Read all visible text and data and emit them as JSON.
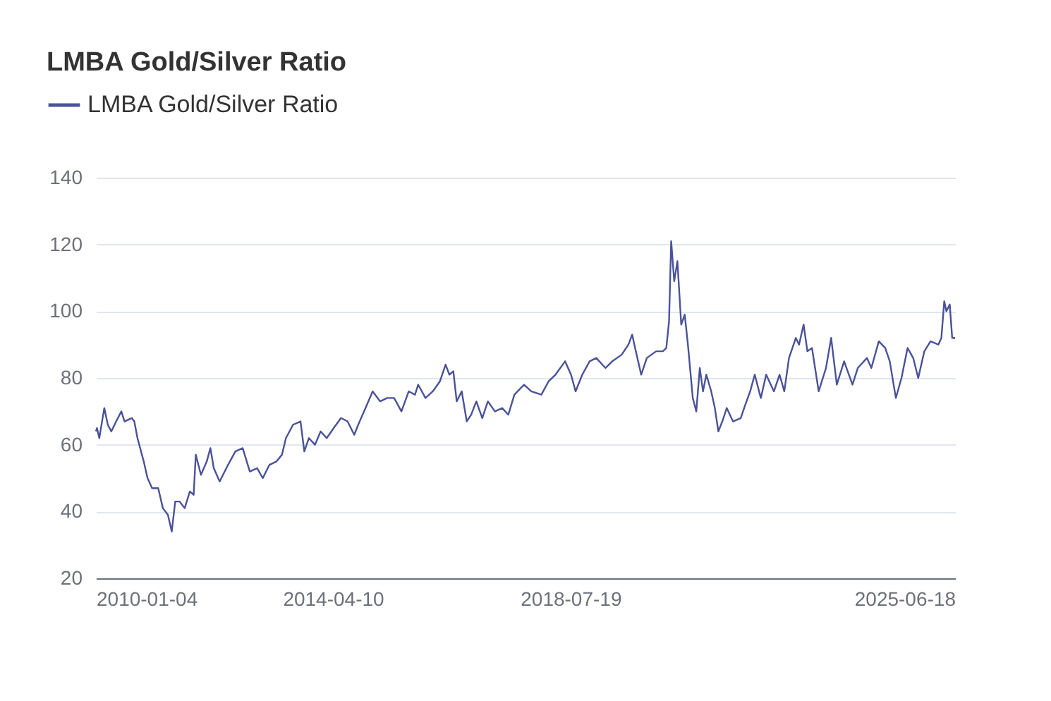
{
  "chart_data": {
    "type": "line",
    "title": "LMBA Gold/Silver Ratio",
    "xlim": [
      "2010-01-04",
      "2025-06-18"
    ],
    "xticks": [
      "2010-01-04",
      "2014-04-10",
      "2018-07-19",
      "2025-06-18"
    ],
    "ylim": [
      20,
      140
    ],
    "yticks": [
      20,
      40,
      60,
      80,
      100,
      120,
      140
    ],
    "grid": "y",
    "legend": "top left",
    "x": [
      "2010-01-04",
      "2010-01-11",
      "2010-01-26",
      "2010-02-28",
      "2010-03-23",
      "2010-04-15",
      "2010-05-17",
      "2010-06-20",
      "2010-07-11",
      "2010-08-28",
      "2010-09-13",
      "2010-10-04",
      "2010-11-14",
      "2010-12-09",
      "2011-01-08",
      "2011-02-17",
      "2011-03-20",
      "2011-04-22",
      "2011-05-17",
      "2011-06-09",
      "2011-07-08",
      "2011-08-10",
      "2011-09-13",
      "2011-10-08",
      "2011-10-22",
      "2011-11-25",
      "2012-01-02",
      "2012-01-26",
      "2012-02-17",
      "2012-03-27",
      "2012-05-21",
      "2012-07-08",
      "2012-08-25",
      "2012-10-11",
      "2012-11-28",
      "2013-01-04",
      "2013-02-17",
      "2013-04-04",
      "2013-05-10",
      "2013-06-05",
      "2013-07-22",
      "2013-09-09",
      "2013-10-04",
      "2013-11-03",
      "2013-12-13",
      "2014-01-19",
      "2014-02-28",
      "2014-04-15",
      "2014-06-02",
      "2014-07-15",
      "2014-08-28",
      "2014-09-23",
      "2014-11-10",
      "2014-12-27",
      "2015-02-14",
      "2015-04-01",
      "2015-05-17",
      "2015-07-04",
      "2015-08-21",
      "2015-10-01",
      "2015-10-22",
      "2015-12-09",
      "2016-01-26",
      "2016-03-13",
      "2016-04-19",
      "2016-05-14",
      "2016-06-09",
      "2016-07-01",
      "2016-08-03",
      "2016-09-05",
      "2016-10-04",
      "2016-11-07",
      "2016-12-16",
      "2017-01-22",
      "2017-03-09",
      "2017-04-26",
      "2017-06-05",
      "2017-07-15",
      "2017-09-16",
      "2017-11-03",
      "2018-01-08",
      "2018-02-25",
      "2018-04-11",
      "2018-06-13",
      "2018-07-22",
      "2018-08-21",
      "2018-10-04",
      "2018-11-21",
      "2019-01-04",
      "2019-03-05",
      "2019-04-19",
      "2019-06-20",
      "2019-08-03",
      "2019-08-28",
      "2019-09-16",
      "2019-10-26",
      "2019-12-02",
      "2020-02-01",
      "2020-03-16",
      "2020-04-08",
      "2020-04-26",
      "2020-05-10",
      "2020-05-30",
      "2020-06-20",
      "2020-07-15",
      "2020-08-07",
      "2020-08-28",
      "2020-09-29",
      "2020-10-22",
      "2020-11-14",
      "2020-12-05",
      "2020-12-27",
      "2021-01-28",
      "2021-02-21",
      "2021-03-16",
      "2021-04-11",
      "2021-05-10",
      "2021-06-20",
      "2021-08-10",
      "2021-09-09",
      "2021-10-11",
      "2021-11-10",
      "2021-12-20",
      "2022-01-24",
      "2022-03-16",
      "2022-04-22",
      "2022-05-23",
      "2022-06-23",
      "2022-08-07",
      "2022-08-28",
      "2022-09-27",
      "2022-10-22",
      "2022-11-21",
      "2023-01-04",
      "2023-02-21",
      "2023-03-27",
      "2023-05-03",
      "2023-06-20",
      "2023-08-14",
      "2023-09-18",
      "2023-11-17",
      "2023-12-16",
      "2024-02-03",
      "2024-03-16",
      "2024-04-15",
      "2024-05-25",
      "2024-07-01",
      "2024-08-10",
      "2024-09-16",
      "2024-10-19",
      "2024-11-28",
      "2025-01-08",
      "2025-02-28",
      "2025-03-20",
      "2025-04-08",
      "2025-04-22",
      "2025-05-14",
      "2025-05-30",
      "2025-06-18"
    ],
    "series": [
      {
        "name": "LMBA Gold/Silver Ratio",
        "color": "#4a5299",
        "values": [
          64,
          65,
          62,
          71,
          66,
          64,
          67,
          70,
          67,
          68,
          67,
          62,
          55,
          50,
          47,
          47,
          41,
          39,
          34,
          43,
          43,
          41,
          46,
          45,
          57,
          51,
          55,
          59,
          53,
          49,
          54,
          58,
          59,
          52,
          53,
          50,
          54,
          55,
          57,
          62,
          66,
          67,
          58,
          62,
          60,
          64,
          62,
          65,
          68,
          67,
          63,
          66,
          71,
          76,
          73,
          74,
          74,
          70,
          76,
          75,
          78,
          74,
          76,
          79,
          84,
          81,
          82,
          73,
          76,
          67,
          69,
          73,
          68,
          73,
          70,
          71,
          69,
          75,
          78,
          76,
          75,
          79,
          81,
          85,
          81,
          76,
          81,
          85,
          86,
          83,
          85,
          87,
          90,
          93,
          89,
          81,
          86,
          88,
          88,
          89,
          97,
          121,
          109,
          115,
          96,
          99,
          90,
          74,
          70,
          83,
          76,
          81,
          76,
          71,
          64,
          67,
          71,
          67,
          68,
          72,
          76,
          81,
          74,
          81,
          76,
          81,
          76,
          86,
          92,
          90,
          96,
          88,
          89,
          76,
          83,
          92,
          78,
          85,
          78,
          83,
          86,
          83,
          91,
          89,
          85,
          74,
          80,
          89,
          86,
          80,
          88,
          91,
          90,
          92,
          103,
          100,
          102,
          92,
          92
        ]
      }
    ]
  }
}
